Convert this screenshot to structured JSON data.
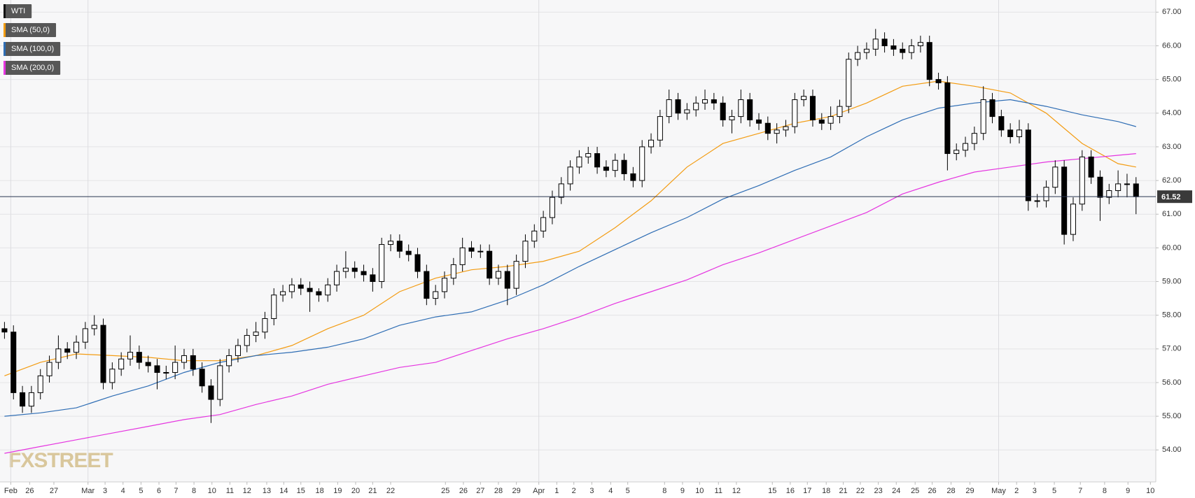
{
  "chart_data": {
    "type": "candlestick",
    "series": [
      {
        "name": "WTI",
        "color": "#000000",
        "x": [
          0,
          1,
          2,
          3,
          4,
          5,
          6,
          7,
          8,
          9,
          10,
          11,
          12,
          13,
          14,
          15,
          16,
          17,
          18,
          19,
          20,
          21,
          22,
          23,
          24,
          25,
          26,
          27,
          28,
          29,
          30,
          31,
          32,
          33,
          34,
          35,
          36,
          37,
          38,
          39,
          40,
          41,
          42,
          43,
          44,
          45,
          46,
          47,
          48,
          49,
          50,
          51,
          52,
          53,
          54,
          55,
          56,
          57,
          58,
          59,
          60,
          61,
          62,
          63,
          64,
          65,
          66,
          67,
          68,
          69,
          70,
          71,
          72,
          73,
          74,
          75,
          76,
          77,
          78,
          79,
          80,
          81,
          82,
          83,
          84,
          85,
          86,
          87,
          88,
          89,
          90,
          91,
          92,
          93,
          94,
          95,
          96,
          97,
          98,
          99,
          100,
          101,
          102,
          103,
          104,
          105,
          106,
          107,
          108,
          109,
          110,
          111,
          112,
          113,
          114,
          115,
          116,
          117,
          118,
          119,
          120,
          121,
          122,
          123,
          124,
          125,
          126
        ],
        "open": [
          57.6,
          57.5,
          55.7,
          55.3,
          55.7,
          56.2,
          56.6,
          57.0,
          56.9,
          57.2,
          57.6,
          57.7,
          56.0,
          56.4,
          56.7,
          56.9,
          56.6,
          56.5,
          56.3,
          56.3,
          56.6,
          56.8,
          56.4,
          55.9,
          55.5,
          56.5,
          56.8,
          57.1,
          57.4,
          57.5,
          57.9,
          58.6,
          58.7,
          58.9,
          58.8,
          58.7,
          58.6,
          58.9,
          59.3,
          59.4,
          59.3,
          59.2,
          59.0,
          60.1,
          60.2,
          59.9,
          59.8,
          59.3,
          58.5,
          58.7,
          59.1,
          59.5,
          60.0,
          59.9,
          59.9,
          59.1,
          59.3,
          58.8,
          59.6,
          60.2,
          60.5,
          60.9,
          61.5,
          61.9,
          62.4,
          62.7,
          62.8,
          62.4,
          62.3,
          62.6,
          62.2,
          62.0,
          63.0,
          63.2,
          63.9,
          64.4,
          64.0,
          64.1,
          64.3,
          64.4,
          64.3,
          63.8,
          63.9,
          64.4,
          63.8,
          63.7,
          63.4,
          63.5,
          63.6,
          64.4,
          64.5,
          63.8,
          63.7,
          63.9,
          64.2,
          65.6,
          65.8,
          65.9,
          66.2,
          66.0,
          65.9,
          65.8,
          66.0,
          66.1,
          65.0,
          64.9,
          62.8,
          62.9,
          63.1,
          63.4,
          64.4,
          63.9,
          63.5,
          63.3,
          63.5,
          61.4,
          61.4,
          61.8,
          62.4,
          60.4,
          61.3,
          62.7,
          62.1,
          61.5,
          61.7,
          61.9,
          61.9
        ],
        "high": [
          57.8,
          57.7,
          55.9,
          55.9,
          56.4,
          56.8,
          57.4,
          57.2,
          57.4,
          57.8,
          58.0,
          57.9,
          56.6,
          56.9,
          57.4,
          57.1,
          56.8,
          56.7,
          56.5,
          57.1,
          57.0,
          57.0,
          56.6,
          56.1,
          56.7,
          57.0,
          57.3,
          57.6,
          57.8,
          58.1,
          58.8,
          58.9,
          59.1,
          59.1,
          59.0,
          58.8,
          59.1,
          59.5,
          59.9,
          59.6,
          59.5,
          59.4,
          60.3,
          60.4,
          60.4,
          60.1,
          60.0,
          59.5,
          58.9,
          59.3,
          59.7,
          60.3,
          60.2,
          60.1,
          60.1,
          59.5,
          59.5,
          59.8,
          60.4,
          60.7,
          61.1,
          61.7,
          62.1,
          62.6,
          62.9,
          63.0,
          63.0,
          62.6,
          62.8,
          62.8,
          62.4,
          63.2,
          63.4,
          64.1,
          64.7,
          64.6,
          64.3,
          64.5,
          64.7,
          64.6,
          64.5,
          64.1,
          64.7,
          64.6,
          64.0,
          63.9,
          63.7,
          63.8,
          64.6,
          64.7,
          64.7,
          64.0,
          64.2,
          64.4,
          65.8,
          66.0,
          66.1,
          66.5,
          66.4,
          66.2,
          66.1,
          66.2,
          66.3,
          66.3,
          65.2,
          65.1,
          63.1,
          63.3,
          63.6,
          64.8,
          64.6,
          64.1,
          63.7,
          63.8,
          63.7,
          61.6,
          62.0,
          62.6,
          62.6,
          61.5,
          62.9,
          62.9,
          62.3,
          61.9,
          62.3,
          62.2,
          62.1
        ],
        "low": [
          57.3,
          55.5,
          55.1,
          55.1,
          55.5,
          56.0,
          56.4,
          56.7,
          56.7,
          57.0,
          57.4,
          55.8,
          55.8,
          56.2,
          56.5,
          56.4,
          56.3,
          55.8,
          56.1,
          56.1,
          56.4,
          56.2,
          55.7,
          54.8,
          55.3,
          56.3,
          56.6,
          56.9,
          57.2,
          57.3,
          57.7,
          58.4,
          58.5,
          58.6,
          58.1,
          58.4,
          58.4,
          58.7,
          59.1,
          59.1,
          59.0,
          58.7,
          58.8,
          59.9,
          59.7,
          59.6,
          59.1,
          58.3,
          58.3,
          58.5,
          58.9,
          59.3,
          59.7,
          59.7,
          58.9,
          58.9,
          58.3,
          58.6,
          59.4,
          60.0,
          60.3,
          60.7,
          61.3,
          61.7,
          62.2,
          62.5,
          62.2,
          62.1,
          62.1,
          62.0,
          61.8,
          61.8,
          62.8,
          63.0,
          63.7,
          63.8,
          63.8,
          63.9,
          64.1,
          64.1,
          63.6,
          63.4,
          63.7,
          63.6,
          63.5,
          63.2,
          63.1,
          63.3,
          63.4,
          64.2,
          63.6,
          63.5,
          63.5,
          63.7,
          64.0,
          65.4,
          65.6,
          65.7,
          65.8,
          65.7,
          65.6,
          65.6,
          65.8,
          64.8,
          64.7,
          62.3,
          62.6,
          62.7,
          62.9,
          63.2,
          63.7,
          63.3,
          63.1,
          63.1,
          61.1,
          61.2,
          61.2,
          61.6,
          60.1,
          60.2,
          61.1,
          61.9,
          60.8,
          61.3,
          61.5,
          61.5,
          61.0
        ],
        "close": [
          57.5,
          55.7,
          55.3,
          55.7,
          56.2,
          56.6,
          57.0,
          56.9,
          57.2,
          57.6,
          57.7,
          56.0,
          56.4,
          56.7,
          56.9,
          56.6,
          56.5,
          56.3,
          56.3,
          56.6,
          56.8,
          56.4,
          55.9,
          55.5,
          56.5,
          56.8,
          57.1,
          57.4,
          57.5,
          57.9,
          58.6,
          58.7,
          58.9,
          58.8,
          58.7,
          58.6,
          58.9,
          59.3,
          59.4,
          59.3,
          59.2,
          59.0,
          60.1,
          60.2,
          59.9,
          59.8,
          59.3,
          58.5,
          58.7,
          59.1,
          59.5,
          60.0,
          59.9,
          59.9,
          59.1,
          59.3,
          58.8,
          59.6,
          60.2,
          60.5,
          60.9,
          61.5,
          61.9,
          62.4,
          62.7,
          62.8,
          62.4,
          62.3,
          62.6,
          62.2,
          62.0,
          63.0,
          63.2,
          63.9,
          64.4,
          64.0,
          64.1,
          64.3,
          64.4,
          64.3,
          63.8,
          63.9,
          64.4,
          63.8,
          63.7,
          63.4,
          63.5,
          63.6,
          64.4,
          64.5,
          63.8,
          63.7,
          63.9,
          64.2,
          65.6,
          65.8,
          65.9,
          66.2,
          66.0,
          65.9,
          65.8,
          66.0,
          66.1,
          65.0,
          64.9,
          62.8,
          62.9,
          63.1,
          63.4,
          64.4,
          63.9,
          63.5,
          63.3,
          63.5,
          61.4,
          61.4,
          61.8,
          62.4,
          60.4,
          61.3,
          62.7,
          62.1,
          61.5,
          61.7,
          61.9,
          61.9,
          61.52
        ]
      },
      {
        "name": "SMA (50,0)",
        "type": "line",
        "color": "#f39c12",
        "x": [
          0,
          4,
          8,
          12,
          16,
          20,
          24,
          28,
          32,
          36,
          40,
          44,
          48,
          52,
          56,
          60,
          64,
          68,
          72,
          76,
          80,
          84,
          88,
          92,
          96,
          100,
          104,
          108,
          112,
          116,
          120,
          124,
          126
        ],
        "values": [
          56.2,
          56.6,
          56.85,
          56.8,
          56.75,
          56.65,
          56.65,
          56.8,
          57.1,
          57.6,
          58.0,
          58.7,
          59.1,
          59.35,
          59.45,
          59.6,
          59.9,
          60.6,
          61.4,
          62.4,
          63.1,
          63.4,
          63.7,
          63.9,
          64.3,
          64.8,
          64.95,
          64.8,
          64.6,
          64.0,
          63.1,
          62.5,
          62.4
        ]
      },
      {
        "name": "SMA (100,0)",
        "type": "line",
        "color": "#2e6db4",
        "x": [
          0,
          4,
          8,
          12,
          16,
          20,
          24,
          28,
          32,
          36,
          40,
          44,
          48,
          52,
          56,
          60,
          64,
          68,
          72,
          76,
          80,
          84,
          88,
          92,
          96,
          100,
          104,
          108,
          112,
          116,
          120,
          124,
          126
        ],
        "values": [
          55.0,
          55.1,
          55.25,
          55.6,
          55.9,
          56.3,
          56.6,
          56.8,
          56.9,
          57.05,
          57.3,
          57.7,
          57.95,
          58.1,
          58.45,
          58.9,
          59.45,
          59.95,
          60.45,
          60.9,
          61.45,
          61.85,
          62.3,
          62.7,
          63.3,
          63.8,
          64.15,
          64.3,
          64.4,
          64.2,
          63.95,
          63.75,
          63.6
        ]
      },
      {
        "name": "SMA (200,0)",
        "type": "line",
        "color": "#e535e0",
        "x": [
          0,
          4,
          8,
          12,
          16,
          20,
          24,
          28,
          32,
          36,
          40,
          44,
          48,
          52,
          56,
          60,
          64,
          68,
          72,
          76,
          80,
          84,
          88,
          92,
          96,
          100,
          104,
          108,
          112,
          116,
          120,
          124,
          126
        ],
        "values": [
          53.9,
          54.1,
          54.3,
          54.5,
          54.7,
          54.9,
          55.05,
          55.35,
          55.6,
          55.95,
          56.2,
          56.45,
          56.6,
          56.95,
          57.3,
          57.6,
          57.95,
          58.35,
          58.7,
          59.05,
          59.5,
          59.85,
          60.25,
          60.65,
          61.05,
          61.6,
          61.95,
          62.25,
          62.4,
          62.55,
          62.65,
          62.75,
          62.8
        ]
      }
    ],
    "last_price": 61.52,
    "xlim": [
      -0.5,
      128.2
    ],
    "xticks": [
      {
        "value": 0.7,
        "label": "Feb"
      },
      {
        "value": 2.8,
        "label": "26"
      },
      {
        "value": 5.5,
        "label": "27"
      },
      {
        "value": 9.3,
        "label": "Mar"
      },
      {
        "value": 11.2,
        "label": "3"
      },
      {
        "value": 13.2,
        "label": "4"
      },
      {
        "value": 15.2,
        "label": "5"
      },
      {
        "value": 17.2,
        "label": "6"
      },
      {
        "value": 19.1,
        "label": "7"
      },
      {
        "value": 21.1,
        "label": "8"
      },
      {
        "value": 23.1,
        "label": "10"
      },
      {
        "value": 25.1,
        "label": "11"
      },
      {
        "value": 27.0,
        "label": "12"
      },
      {
        "value": 29.2,
        "label": "13"
      },
      {
        "value": 31.1,
        "label": "14"
      },
      {
        "value": 33.0,
        "label": "15"
      },
      {
        "value": 35.1,
        "label": "18"
      },
      {
        "value": 37.1,
        "label": "19"
      },
      {
        "value": 39.1,
        "label": "20"
      },
      {
        "value": 41.0,
        "label": "21"
      },
      {
        "value": 43.0,
        "label": "22"
      },
      {
        "value": 49.1,
        "label": "25"
      },
      {
        "value": 51.1,
        "label": "26"
      },
      {
        "value": 53.0,
        "label": "27"
      },
      {
        "value": 55.0,
        "label": "28"
      },
      {
        "value": 57.0,
        "label": "29"
      },
      {
        "value": 59.5,
        "label": "Apr"
      },
      {
        "value": 61.5,
        "label": "1"
      },
      {
        "value": 63.4,
        "label": "2"
      },
      {
        "value": 65.4,
        "label": "3"
      },
      {
        "value": 67.5,
        "label": "4"
      },
      {
        "value": 69.4,
        "label": "5"
      },
      {
        "value": 73.5,
        "label": "8"
      },
      {
        "value": 75.5,
        "label": "9"
      },
      {
        "value": 77.4,
        "label": "10"
      },
      {
        "value": 79.5,
        "label": "11"
      },
      {
        "value": 81.5,
        "label": "12"
      },
      {
        "value": 85.5,
        "label": "15"
      },
      {
        "value": 87.5,
        "label": "16"
      },
      {
        "value": 89.4,
        "label": "17"
      },
      {
        "value": 91.5,
        "label": "18"
      },
      {
        "value": 93.4,
        "label": "21"
      },
      {
        "value": 95.3,
        "label": "22"
      },
      {
        "value": 97.3,
        "label": "23"
      },
      {
        "value": 99.3,
        "label": "24"
      },
      {
        "value": 101.4,
        "label": "25"
      },
      {
        "value": 103.3,
        "label": "26"
      },
      {
        "value": 105.4,
        "label": "28"
      },
      {
        "value": 107.5,
        "label": "29"
      },
      {
        "value": 110.7,
        "label": "May"
      },
      {
        "value": 112.7,
        "label": "2"
      },
      {
        "value": 114.7,
        "label": "3"
      },
      {
        "value": 116.9,
        "label": "5"
      },
      {
        "value": 119.8,
        "label": "7"
      },
      {
        "value": 122.5,
        "label": "8"
      },
      {
        "value": 125.1,
        "label": "9"
      },
      {
        "value": 127.6,
        "label": "10"
      }
    ],
    "ylim": [
      53.05,
      67.36
    ],
    "yticks": [
      {
        "value": 54,
        "label": "54.00"
      },
      {
        "value": 55,
        "label": "55.00"
      },
      {
        "value": 56,
        "label": "56.00"
      },
      {
        "value": 57,
        "label": "57.00"
      },
      {
        "value": 58,
        "label": "58.00"
      },
      {
        "value": 59,
        "label": "59.00"
      },
      {
        "value": 60,
        "label": "60.00"
      },
      {
        "value": 61,
        "label": "61.00"
      },
      {
        "value": 62,
        "label": "62.00"
      },
      {
        "value": 63,
        "label": "63.00"
      },
      {
        "value": 64,
        "label": "64.00"
      },
      {
        "value": 65,
        "label": "65.00"
      },
      {
        "value": 66,
        "label": "66.00"
      },
      {
        "value": 67,
        "label": "67.00"
      }
    ],
    "grid": true,
    "legend": "upper left",
    "watermark": "FXSTREET"
  }
}
